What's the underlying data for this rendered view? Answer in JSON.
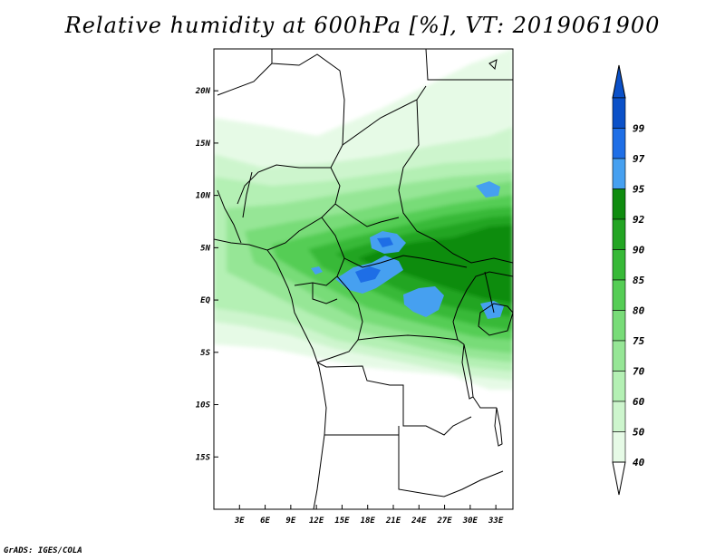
{
  "title": "Relative humidity at 600hPa [%], VT: 2019061900",
  "credit": "GrADS: IGES/COLA",
  "map": {
    "lon_range": [
      0,
      35
    ],
    "lat_range": [
      -20,
      24
    ],
    "lat_ticks": [
      {
        "value": 20,
        "label": "20N"
      },
      {
        "value": 15,
        "label": "15N"
      },
      {
        "value": 10,
        "label": "10N"
      },
      {
        "value": 5,
        "label": "5N"
      },
      {
        "value": 0,
        "label": "EQ"
      },
      {
        "value": -5,
        "label": "5S"
      },
      {
        "value": -10,
        "label": "10S"
      },
      {
        "value": -15,
        "label": "15S"
      }
    ],
    "lon_ticks": [
      {
        "value": 3,
        "label": "3E"
      },
      {
        "value": 6,
        "label": "6E"
      },
      {
        "value": 9,
        "label": "9E"
      },
      {
        "value": 12,
        "label": "12E"
      },
      {
        "value": 15,
        "label": "15E"
      },
      {
        "value": 18,
        "label": "18E"
      },
      {
        "value": 21,
        "label": "21E"
      },
      {
        "value": 24,
        "label": "24E"
      },
      {
        "value": 27,
        "label": "27E"
      },
      {
        "value": 30,
        "label": "30E"
      },
      {
        "value": 33,
        "label": "33E"
      }
    ]
  },
  "colorbar": {
    "levels": [
      {
        "label": "40",
        "color": "#e6fae6"
      },
      {
        "label": "50",
        "color": "#cdf5cd"
      },
      {
        "label": "60",
        "color": "#b4f0b4"
      },
      {
        "label": "70",
        "color": "#96e696"
      },
      {
        "label": "75",
        "color": "#78dc78"
      },
      {
        "label": "80",
        "color": "#55cd55"
      },
      {
        "label": "85",
        "color": "#37b937"
      },
      {
        "label": "90",
        "color": "#23a523"
      },
      {
        "label": "92",
        "color": "#0f8c0f"
      },
      {
        "label": "95",
        "color": "#46a0f0"
      },
      {
        "label": "97",
        "color": "#1e6ee6"
      },
      {
        "label": "99",
        "color": "#0a50c8"
      }
    ],
    "below_color": "#ffffff"
  }
}
